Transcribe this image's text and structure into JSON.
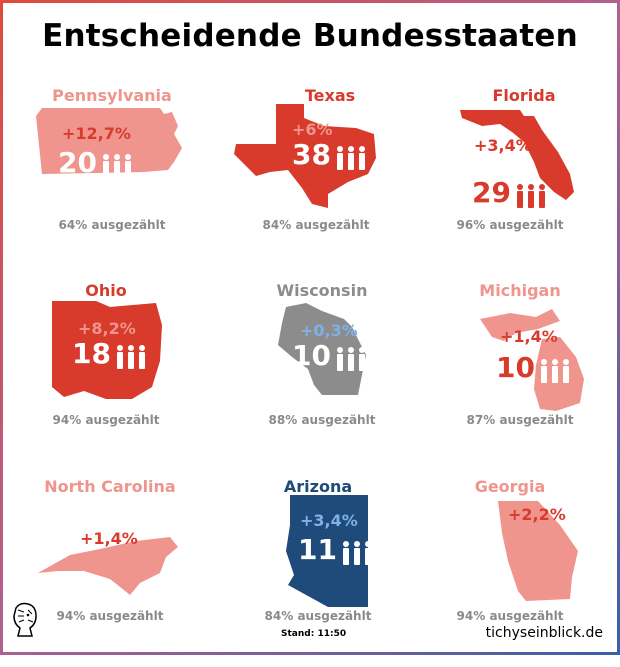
{
  "title": "Entscheidende Bundesstaaten",
  "colors": {
    "red": "#d83a2c",
    "light_red": "#ef958e",
    "gray": "#8c8c8c",
    "blue": "#1f4b7a",
    "light_blue": "#7fb0e8"
  },
  "states": [
    {
      "name": "Pennsylvania",
      "change": "+12,7%",
      "electors": "20",
      "counted": "64% ausgezählt",
      "color": "light_red"
    },
    {
      "name": "Texas",
      "change": "+6%",
      "electors": "38",
      "counted": "84% ausgezählt",
      "color": "red"
    },
    {
      "name": "Florida",
      "change": "+3,4%",
      "electors": "29",
      "counted": "96% ausgezählt",
      "color": "red"
    },
    {
      "name": "Ohio",
      "change": "+8,2%",
      "electors": "18",
      "counted": "94% ausgezählt",
      "color": "red"
    },
    {
      "name": "Wisconsin",
      "change": "+0,3%",
      "electors": "10",
      "counted": "88% ausgezählt",
      "color": "gray"
    },
    {
      "name": "Michigan",
      "change": "+1,4%",
      "electors": "10",
      "counted": "87% ausgezählt",
      "color": "light_red"
    },
    {
      "name": "North Carolina",
      "change": "+1,4%",
      "electors": "",
      "counted": "94% ausgezählt",
      "color": "light_red"
    },
    {
      "name": "Arizona",
      "change": "+3,4%",
      "electors": "11",
      "counted": "84% ausgezählt",
      "color": "blue"
    },
    {
      "name": "Georgia",
      "change": "+2,2%",
      "electors": "",
      "counted": "94% ausgezählt",
      "color": "light_red"
    }
  ],
  "footer": {
    "stand": "Stand: 11:50",
    "site": "tichyseinblick.de"
  },
  "icons": {
    "people": "people-icon",
    "logo": "lion-logo-icon"
  }
}
